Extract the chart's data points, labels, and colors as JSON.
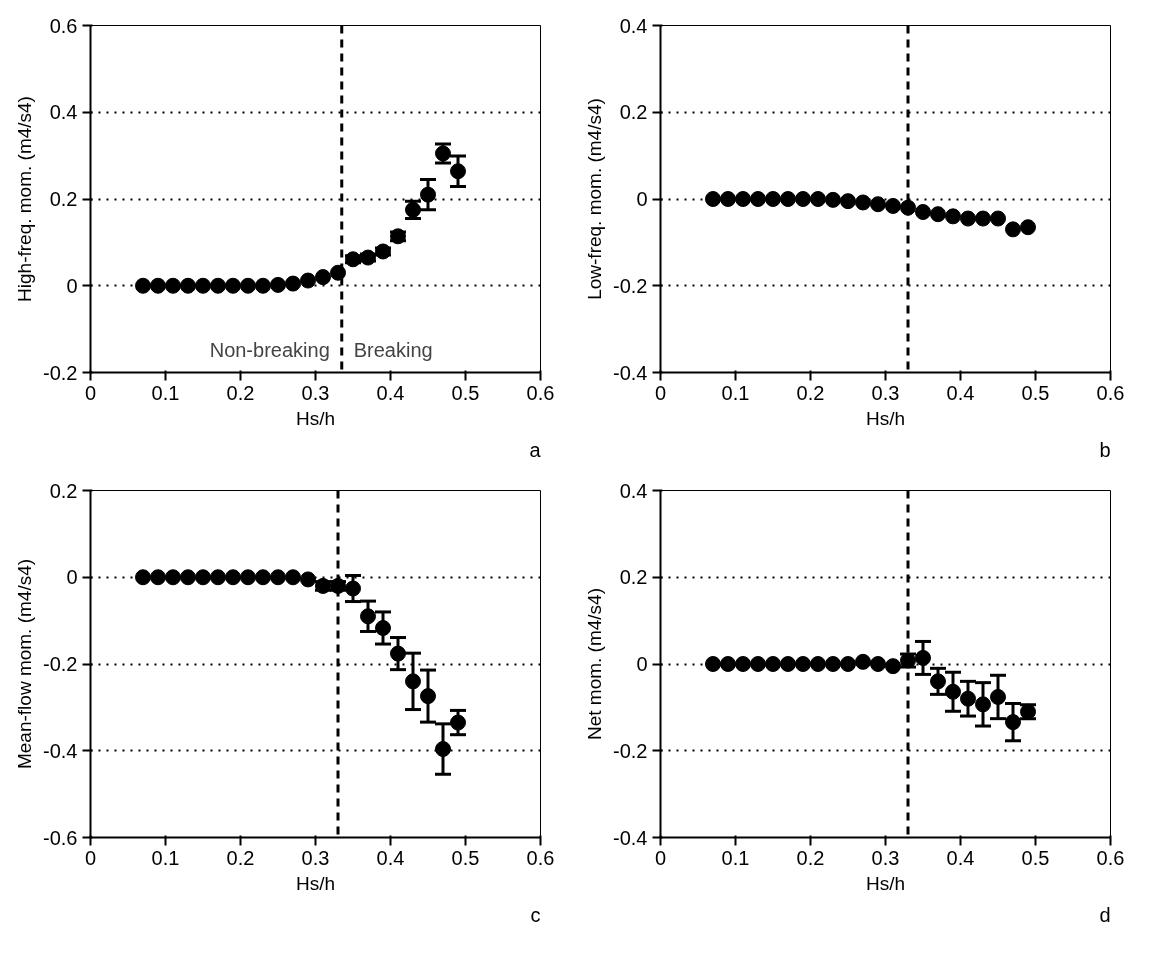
{
  "chart_data": [
    {
      "type": "scatter",
      "xlabel": "Hs/h",
      "ylabel": "High-freq. mom. (m4/s4)",
      "marker": "circle",
      "grid": "y",
      "xlim": [
        0,
        0.6
      ],
      "xticks": [
        0,
        0.1,
        0.2,
        0.3,
        0.4,
        0.5,
        0.6
      ],
      "ylim": [
        -0.2,
        0.6
      ],
      "yticks": [
        -0.2,
        0,
        0.2,
        0.4,
        0.6
      ],
      "x": [
        0.07,
        0.09,
        0.11,
        0.13,
        0.15,
        0.17,
        0.19,
        0.21,
        0.23,
        0.25,
        0.27,
        0.29,
        0.31,
        0.33,
        0.35,
        0.37,
        0.39,
        0.41,
        0.43,
        0.45,
        0.47,
        0.49
      ],
      "series": [
        {
          "color": "#000000",
          "values": [
            0,
            0,
            0,
            0,
            0,
            0,
            0,
            0,
            0,
            0.002,
            0.005,
            0.012,
            0.02,
            0.03,
            0.061,
            0.065,
            0.079,
            0.114,
            0.175,
            0.21,
            0.305,
            0.264
          ],
          "errors": [
            null,
            null,
            null,
            null,
            null,
            null,
            null,
            null,
            null,
            null,
            null,
            null,
            null,
            null,
            0.008,
            0.008,
            0.008,
            0.01,
            0.02,
            0.035,
            0.022,
            0.035
          ]
        }
      ],
      "ref_lines": [
        {
          "axis": "x",
          "value": 0.335,
          "label": null,
          "color": "#000000",
          "line_style": "dashed"
        }
      ],
      "annotations": [
        "Non-breaking",
        "Breaking",
        "a"
      ]
    },
    {
      "type": "scatter",
      "xlabel": "Hs/h",
      "ylabel": "Low-freq. mom. (m4/s4)",
      "marker": "circle",
      "grid": "y",
      "xlim": [
        0,
        0.6
      ],
      "xticks": [
        0,
        0.1,
        0.2,
        0.3,
        0.4,
        0.5,
        0.6
      ],
      "ylim": [
        -0.4,
        0.4
      ],
      "yticks": [
        -0.4,
        -0.2,
        0,
        0.2,
        0.4
      ],
      "x": [
        0.07,
        0.09,
        0.11,
        0.13,
        0.15,
        0.17,
        0.19,
        0.21,
        0.23,
        0.25,
        0.27,
        0.29,
        0.31,
        0.33,
        0.35,
        0.37,
        0.39,
        0.41,
        0.43,
        0.45,
        0.47,
        0.49
      ],
      "series": [
        {
          "color": "#000000",
          "values": [
            0,
            0,
            0,
            0,
            0,
            0,
            0,
            0,
            -0.002,
            -0.005,
            -0.008,
            -0.012,
            -0.016,
            -0.02,
            -0.03,
            -0.035,
            -0.04,
            -0.045,
            -0.045,
            -0.045,
            -0.07,
            -0.065
          ]
        }
      ],
      "ref_lines": [
        {
          "axis": "x",
          "value": 0.33,
          "label": null,
          "color": "#000000",
          "line_style": "dashed"
        }
      ],
      "annotations": [
        "b"
      ]
    },
    {
      "type": "scatter",
      "xlabel": "Hs/h",
      "ylabel": "Mean-flow mom. (m4/s4)",
      "marker": "circle",
      "grid": "y",
      "xlim": [
        0,
        0.6
      ],
      "xticks": [
        0,
        0.1,
        0.2,
        0.3,
        0.4,
        0.5,
        0.6
      ],
      "ylim": [
        -0.6,
        0.2
      ],
      "yticks": [
        -0.6,
        -0.4,
        -0.2,
        0,
        0.2
      ],
      "x": [
        0.07,
        0.09,
        0.11,
        0.13,
        0.15,
        0.17,
        0.19,
        0.21,
        0.23,
        0.25,
        0.27,
        0.29,
        0.31,
        0.33,
        0.35,
        0.37,
        0.39,
        0.41,
        0.43,
        0.45,
        0.47,
        0.49
      ],
      "series": [
        {
          "color": "#000000",
          "values": [
            0,
            0,
            0,
            0,
            0,
            0,
            0,
            0,
            0,
            0,
            0,
            -0.005,
            -0.02,
            -0.02,
            -0.026,
            -0.09,
            -0.117,
            -0.176,
            -0.24,
            -0.274,
            -0.396,
            -0.335
          ],
          "errors": [
            null,
            null,
            null,
            null,
            null,
            null,
            null,
            null,
            null,
            null,
            null,
            null,
            0.01,
            0.01,
            0.03,
            0.035,
            0.037,
            0.037,
            0.065,
            0.06,
            0.058,
            0.028
          ]
        }
      ],
      "ref_lines": [
        {
          "axis": "x",
          "value": 0.33,
          "label": null,
          "color": "#000000",
          "line_style": "dashed"
        }
      ],
      "annotations": [
        "c"
      ]
    },
    {
      "type": "scatter",
      "xlabel": "Hs/h",
      "ylabel": "Net mom. (m4/s4)",
      "marker": "circle",
      "grid": "y",
      "xlim": [
        0,
        0.6
      ],
      "xticks": [
        0,
        0.1,
        0.2,
        0.3,
        0.4,
        0.5,
        0.6
      ],
      "ylim": [
        -0.4,
        0.4
      ],
      "yticks": [
        -0.4,
        -0.2,
        0,
        0.2,
        0.4
      ],
      "x": [
        0.07,
        0.09,
        0.11,
        0.13,
        0.15,
        0.17,
        0.19,
        0.21,
        0.23,
        0.25,
        0.27,
        0.29,
        0.31,
        0.33,
        0.35,
        0.37,
        0.39,
        0.41,
        0.43,
        0.45,
        0.47,
        0.49
      ],
      "series": [
        {
          "color": "#000000",
          "values": [
            0,
            0,
            0,
            0,
            0,
            0,
            0,
            0,
            0,
            0,
            0.005,
            0,
            -0.005,
            0.008,
            0.014,
            -0.04,
            -0.064,
            -0.08,
            -0.093,
            -0.076,
            -0.134,
            -0.11
          ],
          "errors": [
            null,
            null,
            null,
            null,
            null,
            null,
            null,
            null,
            null,
            null,
            null,
            null,
            null,
            0.015,
            0.038,
            0.03,
            0.045,
            0.04,
            0.05,
            0.05,
            0.043,
            0.016
          ]
        }
      ],
      "ref_lines": [
        {
          "axis": "x",
          "value": 0.33,
          "label": null,
          "color": "#000000",
          "line_style": "dashed"
        }
      ],
      "annotations": [
        "d"
      ]
    }
  ]
}
